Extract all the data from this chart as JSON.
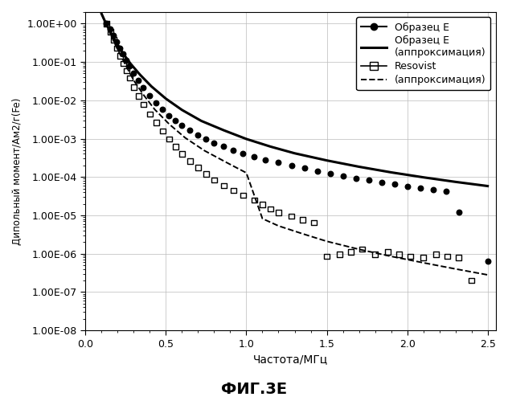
{
  "title": "ФИГ.3Е",
  "xlabel": "Частота/МГц",
  "ylabel": "Дипольный момент/Ам2/г(Fe)",
  "xlim": [
    0.0,
    2.55
  ],
  "ylim": [
    1e-08,
    2.0
  ],
  "sample_E_dots": [
    [
      0.13,
      1.0
    ],
    [
      0.155,
      0.72
    ],
    [
      0.175,
      0.5
    ],
    [
      0.195,
      0.34
    ],
    [
      0.215,
      0.23
    ],
    [
      0.235,
      0.16
    ],
    [
      0.255,
      0.11
    ],
    [
      0.275,
      0.078
    ],
    [
      0.3,
      0.052
    ],
    [
      0.33,
      0.033
    ],
    [
      0.36,
      0.021
    ],
    [
      0.4,
      0.013
    ],
    [
      0.44,
      0.0085
    ],
    [
      0.48,
      0.0057
    ],
    [
      0.52,
      0.004
    ],
    [
      0.56,
      0.0029
    ],
    [
      0.6,
      0.0022
    ],
    [
      0.65,
      0.00165
    ],
    [
      0.7,
      0.00125
    ],
    [
      0.75,
      0.00098
    ],
    [
      0.8,
      0.00078
    ],
    [
      0.86,
      0.00062
    ],
    [
      0.92,
      0.0005
    ],
    [
      0.98,
      0.00041
    ],
    [
      1.05,
      0.00034
    ],
    [
      1.12,
      0.00028
    ],
    [
      1.2,
      0.00024
    ],
    [
      1.28,
      0.0002
    ],
    [
      1.36,
      0.00017
    ],
    [
      1.44,
      0.000145
    ],
    [
      1.52,
      0.000124
    ],
    [
      1.6,
      0.000107
    ],
    [
      1.68,
      9.35e-05
    ],
    [
      1.76,
      8.2e-05
    ],
    [
      1.84,
      7.25e-05
    ],
    [
      1.92,
      6.45e-05
    ],
    [
      2.0,
      5.75e-05
    ],
    [
      2.08,
      5.15e-05
    ],
    [
      2.16,
      4.6e-05
    ],
    [
      2.24,
      4.15e-05
    ],
    [
      2.32,
      1.2e-05
    ],
    [
      2.5,
      6.5e-07
    ]
  ],
  "sample_E_approx": [
    [
      0.1,
      1.8
    ],
    [
      0.13,
      0.95
    ],
    [
      0.16,
      0.56
    ],
    [
      0.19,
      0.33
    ],
    [
      0.23,
      0.175
    ],
    [
      0.28,
      0.09
    ],
    [
      0.34,
      0.046
    ],
    [
      0.41,
      0.023
    ],
    [
      0.5,
      0.011
    ],
    [
      0.6,
      0.0056
    ],
    [
      0.72,
      0.0029
    ],
    [
      0.86,
      0.00165
    ],
    [
      1.0,
      0.00098
    ],
    [
      1.15,
      0.00062
    ],
    [
      1.3,
      0.000415
    ],
    [
      1.5,
      0.00027
    ],
    [
      1.7,
      0.000185
    ],
    [
      1.9,
      0.000132
    ],
    [
      2.1,
      9.8e-05
    ],
    [
      2.3,
      7.45e-05
    ],
    [
      2.5,
      5.8e-05
    ]
  ],
  "resovist_dots": [
    [
      0.13,
      1.0
    ],
    [
      0.155,
      0.62
    ],
    [
      0.175,
      0.38
    ],
    [
      0.195,
      0.23
    ],
    [
      0.215,
      0.145
    ],
    [
      0.235,
      0.092
    ],
    [
      0.255,
      0.059
    ],
    [
      0.275,
      0.038
    ],
    [
      0.3,
      0.022
    ],
    [
      0.33,
      0.013
    ],
    [
      0.36,
      0.0077
    ],
    [
      0.4,
      0.0044
    ],
    [
      0.44,
      0.0026
    ],
    [
      0.48,
      0.00158
    ],
    [
      0.52,
      0.00097
    ],
    [
      0.56,
      0.000615
    ],
    [
      0.6,
      0.0004
    ],
    [
      0.65,
      0.00026
    ],
    [
      0.7,
      0.000175
    ],
    [
      0.75,
      0.00012
    ],
    [
      0.8,
      8.4e-05
    ],
    [
      0.86,
      6e-05
    ],
    [
      0.92,
      4.4e-05
    ],
    [
      0.98,
      3.3e-05
    ],
    [
      1.05,
      2.5e-05
    ],
    [
      1.1,
      1.9e-05
    ],
    [
      1.15,
      1.48e-05
    ],
    [
      1.2,
      1.18e-05
    ],
    [
      1.28,
      9.4e-06
    ],
    [
      1.35,
      7.7e-06
    ],
    [
      1.42,
      6.5e-06
    ],
    [
      1.5,
      8.5e-07
    ],
    [
      1.58,
      9.5e-07
    ],
    [
      1.65,
      1.1e-06
    ],
    [
      1.72,
      1.3e-06
    ],
    [
      1.8,
      9.5e-07
    ],
    [
      1.88,
      1.1e-06
    ],
    [
      1.95,
      9.5e-07
    ],
    [
      2.02,
      8.5e-07
    ],
    [
      2.1,
      8e-07
    ],
    [
      2.18,
      9.5e-07
    ],
    [
      2.25,
      8.5e-07
    ],
    [
      2.32,
      8e-07
    ],
    [
      2.4,
      2e-07
    ]
  ],
  "resovist_approx": [
    [
      0.1,
      1.8
    ],
    [
      0.13,
      0.9
    ],
    [
      0.16,
      0.48
    ],
    [
      0.2,
      0.21
    ],
    [
      0.25,
      0.082
    ],
    [
      0.3,
      0.033
    ],
    [
      0.36,
      0.014
    ],
    [
      0.43,
      0.0058
    ],
    [
      0.52,
      0.0024
    ],
    [
      0.62,
      0.00105
    ],
    [
      0.74,
      0.000485
    ],
    [
      0.88,
      0.000235
    ],
    [
      1.0,
      0.000128
    ],
    [
      1.1,
      8.2e-06
    ],
    [
      1.2,
      5.3e-06
    ],
    [
      1.35,
      3.3e-06
    ],
    [
      1.5,
      2.1e-06
    ],
    [
      1.7,
      1.3e-06
    ],
    [
      1.9,
      8.5e-07
    ],
    [
      2.1,
      5.8e-07
    ],
    [
      2.3,
      4e-07
    ],
    [
      2.5,
      2.8e-07
    ]
  ],
  "background_color": "#ffffff"
}
